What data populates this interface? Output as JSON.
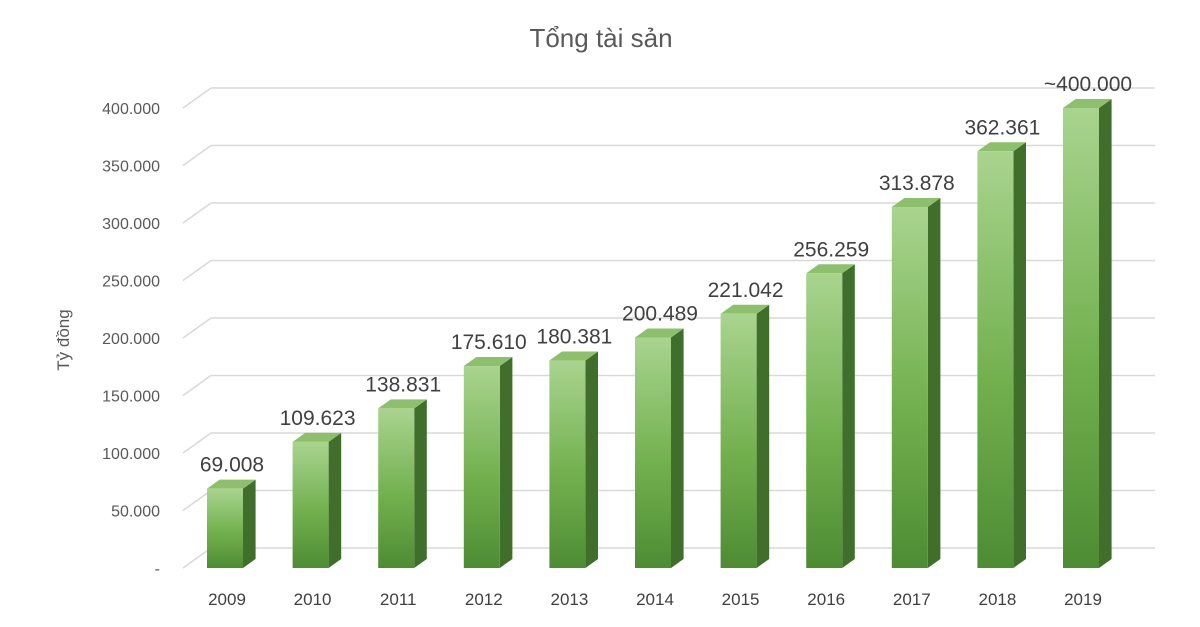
{
  "chart_data": {
    "type": "bar",
    "title": "Tổng tài sản",
    "xlabel": "",
    "ylabel": "Tỷ đồng",
    "categories": [
      "2009",
      "2010",
      "2011",
      "2012",
      "2013",
      "2014",
      "2015",
      "2016",
      "2017",
      "2018",
      "2019"
    ],
    "values": [
      69008,
      109623,
      138831,
      175610,
      180381,
      200489,
      221042,
      256259,
      313878,
      362361,
      400000
    ],
    "data_labels": [
      "69.008",
      "109.623",
      "138.831",
      "175.610",
      "180.381",
      "200.489",
      "221.042",
      "256.259",
      "313.878",
      "362.361",
      "~400.000"
    ],
    "ylim": [
      0,
      400000
    ],
    "y_ticks": [
      0,
      50000,
      100000,
      150000,
      200000,
      250000,
      300000,
      350000,
      400000
    ],
    "y_tick_labels": [
      "-",
      "50.000",
      "100.000",
      "150.000",
      "200.000",
      "250.000",
      "300.000",
      "350.000",
      "400.000"
    ],
    "grid": true,
    "legend": "none",
    "style": "3d-column",
    "colors": {
      "bar_front_top": "#a9d48f",
      "bar_front_bottom": "#4e8c34",
      "bar_side": "#3f6f2b",
      "bar_top": "#8cc06c",
      "grid": "#d9d9d9",
      "text": "#595959"
    }
  }
}
